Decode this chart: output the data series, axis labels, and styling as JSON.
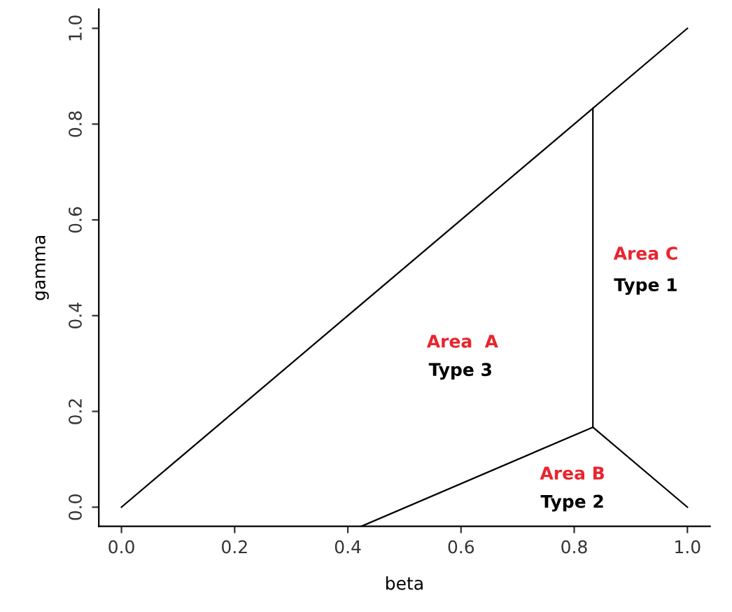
{
  "chart_data": {
    "type": "line",
    "xlabel": "beta",
    "ylabel": "gamma",
    "xlim": [
      -0.04,
      1.04
    ],
    "ylim": [
      -0.04,
      1.04
    ],
    "xticks": [
      {
        "value": 0,
        "label": "0.0"
      },
      {
        "value": 0.2,
        "label": "0.2"
      },
      {
        "value": 0.4,
        "label": "0.4"
      },
      {
        "value": 0.6,
        "label": "0.6"
      },
      {
        "value": 0.8,
        "label": "0.8"
      },
      {
        "value": 1,
        "label": "1.0"
      }
    ],
    "yticks": [
      {
        "value": 0,
        "label": "0.0"
      },
      {
        "value": 0.2,
        "label": "0.2"
      },
      {
        "value": 0.4,
        "label": "0.4"
      },
      {
        "value": 0.6,
        "label": "0.6"
      },
      {
        "value": 0.8,
        "label": "0.8"
      },
      {
        "value": 1,
        "label": "1.0"
      }
    ],
    "grid": false,
    "legend": false,
    "marker": "none",
    "line_style": "solid",
    "series": [
      {
        "color": "#000000",
        "x": [
          0,
          1
        ],
        "values": [
          0,
          1
        ]
      },
      {
        "color": "#000000",
        "x": [
          0.833,
          0.833
        ],
        "values": [
          0.167,
          0.833
        ]
      },
      {
        "color": "#000000",
        "x": [
          0.424,
          0.833
        ],
        "values": [
          -0.04,
          0.167
        ]
      },
      {
        "color": "#000000",
        "x": [
          0.833,
          1
        ],
        "values": [
          0.167,
          0
        ]
      }
    ],
    "annotations": [
      "Area  A",
      "Type 3",
      "Area B",
      "Type 2",
      "Area C",
      "Type 1"
    ]
  }
}
